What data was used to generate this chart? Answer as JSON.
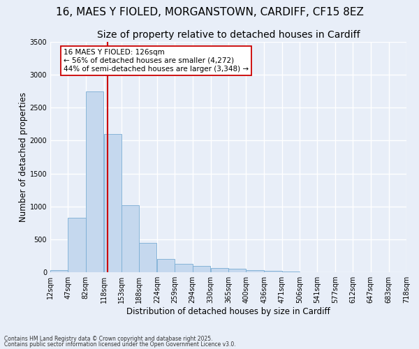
{
  "title_line1": "16, MAES Y FIOLED, MORGANSTOWN, CARDIFF, CF15 8EZ",
  "title_line2": "Size of property relative to detached houses in Cardiff",
  "xlabel": "Distribution of detached houses by size in Cardiff",
  "ylabel": "Number of detached properties",
  "bins": [
    12,
    47,
    82,
    118,
    153,
    188,
    224,
    259,
    294,
    330,
    365,
    400,
    436,
    471,
    506,
    541,
    577,
    612,
    647,
    683,
    718
  ],
  "bin_labels": [
    "12sqm",
    "47sqm",
    "82sqm",
    "118sqm",
    "153sqm",
    "188sqm",
    "224sqm",
    "259sqm",
    "294sqm",
    "330sqm",
    "365sqm",
    "400sqm",
    "436sqm",
    "471sqm",
    "506sqm",
    "541sqm",
    "577sqm",
    "612sqm",
    "647sqm",
    "683sqm",
    "718sqm"
  ],
  "bar_heights": [
    30,
    830,
    2750,
    2100,
    1020,
    450,
    200,
    130,
    95,
    65,
    50,
    35,
    20,
    15,
    0,
    0,
    0,
    0,
    0,
    0
  ],
  "bar_color": "#c5d8ee",
  "bar_edge_color": "#7aadd4",
  "property_size": 126,
  "vline_color": "#cc0000",
  "annotation_text": "16 MAES Y FIOLED: 126sqm\n← 56% of detached houses are smaller (4,272)\n44% of semi-detached houses are larger (3,348) →",
  "annotation_box_color": "#ffffff",
  "annotation_box_edge": "#cc0000",
  "ylim": [
    0,
    3500
  ],
  "yticks": [
    0,
    500,
    1000,
    1500,
    2000,
    2500,
    3000,
    3500
  ],
  "bg_color": "#e8eef8",
  "plot_bg_color": "#e8eef8",
  "footer_line1": "Contains HM Land Registry data © Crown copyright and database right 2025.",
  "footer_line2": "Contains public sector information licensed under the Open Government Licence v3.0.",
  "grid_color": "#ffffff",
  "title_fontsize": 11,
  "subtitle_fontsize": 10,
  "label_fontsize": 8.5,
  "tick_fontsize": 7,
  "annot_fontsize": 7.5
}
